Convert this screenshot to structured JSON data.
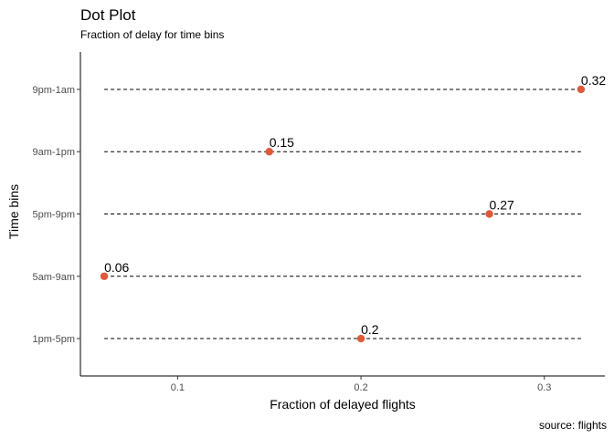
{
  "chart_data": {
    "type": "scatter",
    "title": "Dot Plot",
    "subtitle": "Fraction of delay for time bins",
    "xlabel": "Fraction of delayed flights",
    "ylabel": "Time bins",
    "caption": "source: flights",
    "categories": [
      "1pm-5pm",
      "5am-9am",
      "5pm-9pm",
      "9am-1pm",
      "9pm-1am"
    ],
    "values": [
      0.2,
      0.06,
      0.27,
      0.15,
      0.32
    ],
    "data_labels": [
      "0.2",
      "0.06",
      "0.27",
      "0.15",
      "0.32"
    ],
    "x_ticks": [
      0.1,
      0.2,
      0.3
    ],
    "x_tick_labels": [
      "0.1",
      "0.2",
      "0.3"
    ],
    "xlim": [
      0.047,
      0.333
    ],
    "grid": false,
    "segment_style": "dashed",
    "point_color": "#e05a3a"
  }
}
